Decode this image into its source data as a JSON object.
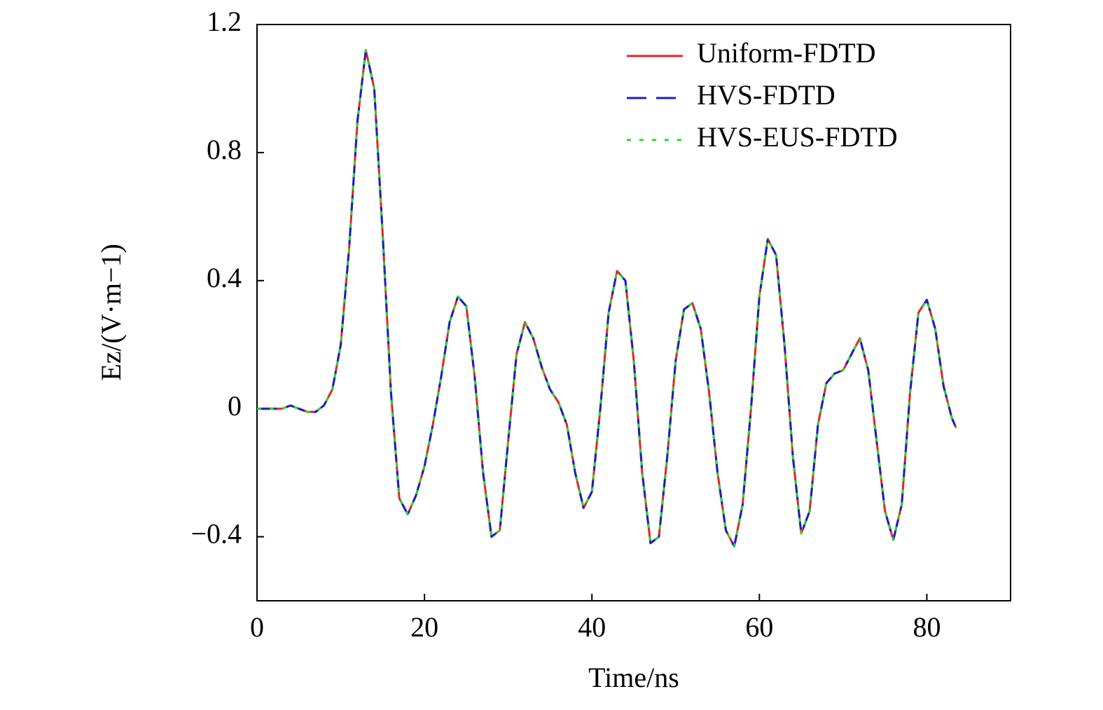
{
  "chart_data": {
    "type": "line",
    "xlabel": "Time/ns",
    "ylabel": "Ez/(V·m−1)",
    "xlim": [
      0,
      90
    ],
    "ylim": [
      -0.6,
      1.2
    ],
    "xticks": [
      0,
      20,
      40,
      60,
      80
    ],
    "yticks": [
      {
        "value": -0.4,
        "label": "−0.4"
      },
      0,
      0.4,
      0.8,
      1.2
    ],
    "legend": "upper right",
    "x": [
      0,
      1,
      2,
      3,
      4,
      5,
      6,
      7,
      8,
      9,
      10,
      11,
      12,
      13,
      14,
      15,
      16,
      17,
      18,
      19,
      20,
      21,
      22,
      23,
      24,
      25,
      26,
      27,
      28,
      29,
      30,
      31,
      32,
      33,
      34,
      35,
      36,
      37,
      38,
      39,
      40,
      41,
      42,
      43,
      44,
      45,
      46,
      47,
      48,
      49,
      50,
      51,
      52,
      53,
      54,
      55,
      56,
      57,
      58,
      59,
      60,
      61,
      62,
      63,
      64,
      65,
      66,
      67,
      68,
      69,
      70,
      71,
      72,
      73,
      74,
      75,
      76,
      77,
      78,
      79,
      80,
      81,
      82,
      83,
      83.5
    ],
    "series": [
      {
        "name": "Uniform-FDTD",
        "color": "#e8202a",
        "dash": "solid",
        "values": [
          0,
          0,
          0,
          0,
          0.01,
          0,
          -0.01,
          -0.01,
          0.01,
          0.06,
          0.2,
          0.5,
          0.9,
          1.12,
          1.0,
          0.55,
          0.05,
          -0.28,
          -0.33,
          -0.27,
          -0.18,
          -0.05,
          0.1,
          0.27,
          0.35,
          0.32,
          0.1,
          -0.2,
          -0.4,
          -0.38,
          -0.1,
          0.17,
          0.27,
          0.22,
          0.13,
          0.06,
          0.02,
          -0.05,
          -0.2,
          -0.31,
          -0.26,
          0.0,
          0.3,
          0.43,
          0.4,
          0.15,
          -0.2,
          -0.42,
          -0.4,
          -0.15,
          0.15,
          0.31,
          0.33,
          0.25,
          0.05,
          -0.2,
          -0.38,
          -0.43,
          -0.3,
          0.0,
          0.35,
          0.53,
          0.48,
          0.2,
          -0.15,
          -0.39,
          -0.32,
          -0.05,
          0.08,
          0.11,
          0.12,
          0.17,
          0.22,
          0.12,
          -0.1,
          -0.32,
          -0.41,
          -0.3,
          0.05,
          0.3,
          0.34,
          0.25,
          0.07,
          -0.03,
          -0.06
        ]
      },
      {
        "name": "HVS-FDTD",
        "color": "#1c1cc8",
        "dash": "dashed",
        "values": [
          0,
          0,
          0,
          0,
          0.01,
          0,
          -0.01,
          -0.01,
          0.01,
          0.06,
          0.2,
          0.5,
          0.9,
          1.12,
          1.0,
          0.55,
          0.05,
          -0.28,
          -0.33,
          -0.27,
          -0.18,
          -0.05,
          0.1,
          0.27,
          0.35,
          0.32,
          0.1,
          -0.2,
          -0.4,
          -0.38,
          -0.1,
          0.17,
          0.27,
          0.22,
          0.13,
          0.06,
          0.02,
          -0.05,
          -0.2,
          -0.31,
          -0.26,
          0.0,
          0.3,
          0.43,
          0.4,
          0.15,
          -0.2,
          -0.42,
          -0.4,
          -0.15,
          0.15,
          0.31,
          0.33,
          0.25,
          0.05,
          -0.2,
          -0.38,
          -0.43,
          -0.3,
          0.0,
          0.35,
          0.53,
          0.48,
          0.2,
          -0.15,
          -0.39,
          -0.32,
          -0.05,
          0.08,
          0.11,
          0.12,
          0.17,
          0.22,
          0.12,
          -0.1,
          -0.32,
          -0.41,
          -0.3,
          0.05,
          0.3,
          0.34,
          0.25,
          0.07,
          -0.03,
          -0.06
        ]
      },
      {
        "name": "HVS-EUS-FDTD",
        "color": "#22dd22",
        "dash": "dotted",
        "values": [
          0,
          0,
          0,
          0,
          0.01,
          0,
          -0.01,
          -0.01,
          0.01,
          0.06,
          0.2,
          0.5,
          0.9,
          1.12,
          1.0,
          0.55,
          0.05,
          -0.28,
          -0.33,
          -0.27,
          -0.18,
          -0.05,
          0.1,
          0.27,
          0.35,
          0.32,
          0.1,
          -0.2,
          -0.4,
          -0.38,
          -0.1,
          0.17,
          0.27,
          0.22,
          0.13,
          0.06,
          0.02,
          -0.05,
          -0.2,
          -0.31,
          -0.26,
          0.0,
          0.3,
          0.43,
          0.4,
          0.15,
          -0.2,
          -0.42,
          -0.4,
          -0.15,
          0.15,
          0.31,
          0.33,
          0.25,
          0.05,
          -0.2,
          -0.38,
          -0.43,
          -0.3,
          0.0,
          0.35,
          0.53,
          0.48,
          0.2,
          -0.15,
          -0.39,
          -0.32,
          -0.05,
          0.08,
          0.11,
          0.12,
          0.17,
          0.22,
          0.12,
          -0.1,
          -0.32,
          -0.41,
          -0.3,
          0.05,
          0.3,
          0.34,
          0.25,
          0.07,
          -0.03,
          -0.06
        ]
      }
    ]
  }
}
